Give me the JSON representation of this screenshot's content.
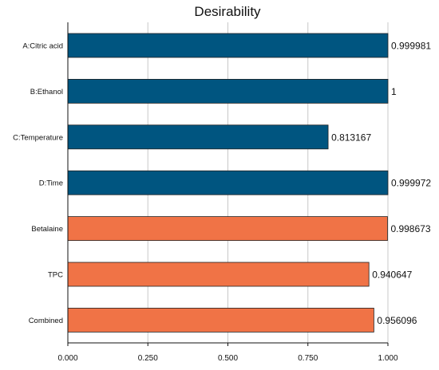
{
  "chart_data": {
    "type": "bar",
    "orientation": "horizontal",
    "title": "Desirability",
    "xlabel": "",
    "ylabel": "",
    "xlim": [
      0,
      1
    ],
    "ticks": [
      "0.000",
      "0.250",
      "0.500",
      "0.750",
      "1.000"
    ],
    "tick_values": [
      0,
      0.25,
      0.5,
      0.75,
      1.0
    ],
    "grid": true,
    "categories": [
      "A:Citric acid",
      "B:Ethanol",
      "C:Temperature",
      "D:Time",
      "Betalaine",
      "TPC",
      "Combined"
    ],
    "values": [
      0.999981,
      1,
      0.813167,
      0.999972,
      0.998673,
      0.940647,
      0.956096
    ],
    "value_labels": [
      "0.999981",
      "1",
      "0.813167",
      "0.999972",
      "0.998673",
      "0.940647",
      "0.956096"
    ],
    "bar_groups": [
      "factor",
      "factor",
      "factor",
      "factor",
      "response",
      "response",
      "combined"
    ],
    "colors": {
      "factor": "#005580",
      "response": "#f07346",
      "combined": "#f07346"
    }
  }
}
